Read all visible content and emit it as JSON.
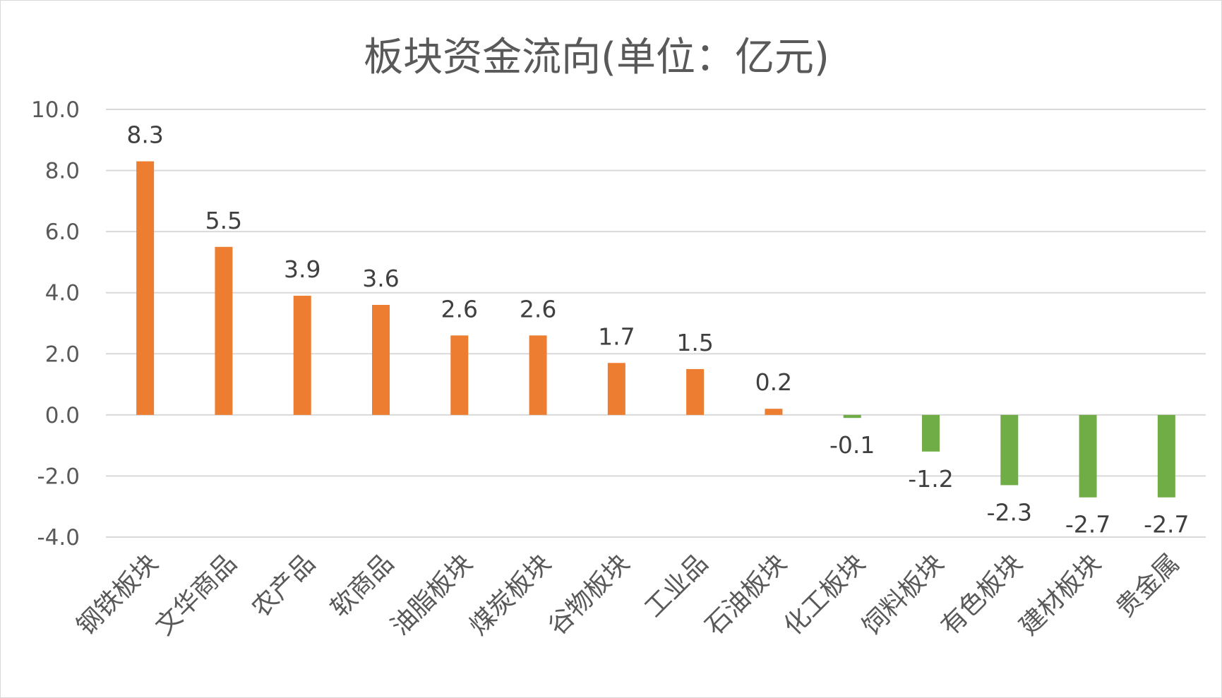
{
  "chart_data": {
    "type": "bar",
    "title": "板块资金流向(单位：亿元)",
    "xlabel": "",
    "ylabel": "",
    "ylim": [
      -4,
      10
    ],
    "yticks": [
      10,
      8,
      6,
      4,
      2,
      0,
      -2,
      -4
    ],
    "ytick_labels": [
      "10.0",
      "8.0",
      "6.0",
      "4.0",
      "2.0",
      "0.0",
      "-2.0",
      "-4.0"
    ],
    "grid": true,
    "legend": "none",
    "categories": [
      "钢铁板块",
      "文华商品",
      "农产品",
      "软商品",
      "油脂板块",
      "煤炭板块",
      "谷物板块",
      "工业品",
      "石油板块",
      "化工板块",
      "饲料板块",
      "有色板块",
      "建材板块",
      "贵金属"
    ],
    "values": [
      8.3,
      5.5,
      3.9,
      3.6,
      2.6,
      2.6,
      1.7,
      1.5,
      0.2,
      -0.1,
      -1.2,
      -2.3,
      -2.7,
      -2.7
    ],
    "value_labels": [
      "8.3",
      "5.5",
      "3.9",
      "3.6",
      "2.6",
      "2.6",
      "1.7",
      "1.5",
      "0.2",
      "-0.1",
      "-1.2",
      "-2.3",
      "-2.7",
      "-2.7"
    ],
    "colors": {
      "positive": "#ed7d31",
      "negative": "#70ad47"
    }
  }
}
